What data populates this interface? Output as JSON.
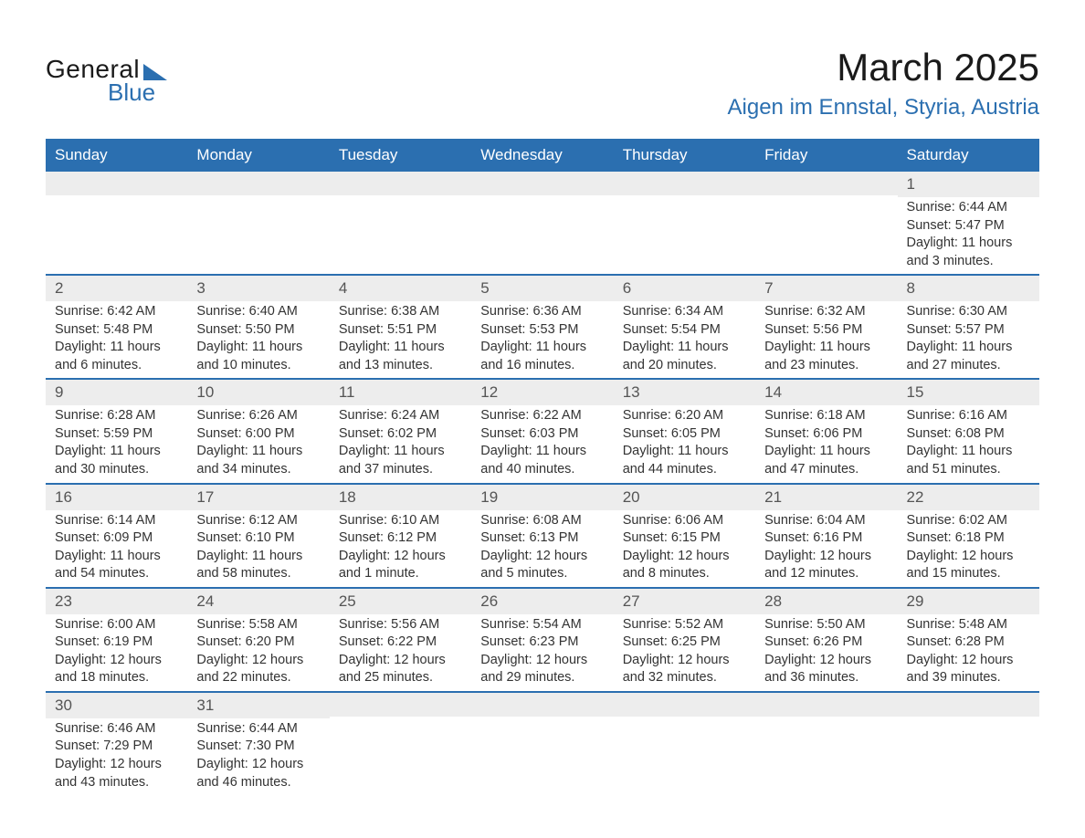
{
  "logo": {
    "text_main": "General",
    "text_sub": "Blue",
    "accent_color": "#2b6fb0"
  },
  "title": {
    "month": "March 2025",
    "location": "Aigen im Ennstal, Styria, Austria"
  },
  "styling": {
    "header_bg": "#2b6fb0",
    "header_fg": "#ffffff",
    "strip_bg": "#ededed",
    "row_divider": "#2b6fb0",
    "body_fontsize": 14.5,
    "header_fontsize": 17,
    "title_fontsize": 42,
    "subtitle_fontsize": 24
  },
  "day_headers": [
    "Sunday",
    "Monday",
    "Tuesday",
    "Wednesday",
    "Thursday",
    "Friday",
    "Saturday"
  ],
  "weeks": [
    [
      {
        "n": "",
        "sunrise": "",
        "sunset": "",
        "daylight": ""
      },
      {
        "n": "",
        "sunrise": "",
        "sunset": "",
        "daylight": ""
      },
      {
        "n": "",
        "sunrise": "",
        "sunset": "",
        "daylight": ""
      },
      {
        "n": "",
        "sunrise": "",
        "sunset": "",
        "daylight": ""
      },
      {
        "n": "",
        "sunrise": "",
        "sunset": "",
        "daylight": ""
      },
      {
        "n": "",
        "sunrise": "",
        "sunset": "",
        "daylight": ""
      },
      {
        "n": "1",
        "sunrise": "Sunrise: 6:44 AM",
        "sunset": "Sunset: 5:47 PM",
        "daylight": "Daylight: 11 hours and 3 minutes."
      }
    ],
    [
      {
        "n": "2",
        "sunrise": "Sunrise: 6:42 AM",
        "sunset": "Sunset: 5:48 PM",
        "daylight": "Daylight: 11 hours and 6 minutes."
      },
      {
        "n": "3",
        "sunrise": "Sunrise: 6:40 AM",
        "sunset": "Sunset: 5:50 PM",
        "daylight": "Daylight: 11 hours and 10 minutes."
      },
      {
        "n": "4",
        "sunrise": "Sunrise: 6:38 AM",
        "sunset": "Sunset: 5:51 PM",
        "daylight": "Daylight: 11 hours and 13 minutes."
      },
      {
        "n": "5",
        "sunrise": "Sunrise: 6:36 AM",
        "sunset": "Sunset: 5:53 PM",
        "daylight": "Daylight: 11 hours and 16 minutes."
      },
      {
        "n": "6",
        "sunrise": "Sunrise: 6:34 AM",
        "sunset": "Sunset: 5:54 PM",
        "daylight": "Daylight: 11 hours and 20 minutes."
      },
      {
        "n": "7",
        "sunrise": "Sunrise: 6:32 AM",
        "sunset": "Sunset: 5:56 PM",
        "daylight": "Daylight: 11 hours and 23 minutes."
      },
      {
        "n": "8",
        "sunrise": "Sunrise: 6:30 AM",
        "sunset": "Sunset: 5:57 PM",
        "daylight": "Daylight: 11 hours and 27 minutes."
      }
    ],
    [
      {
        "n": "9",
        "sunrise": "Sunrise: 6:28 AM",
        "sunset": "Sunset: 5:59 PM",
        "daylight": "Daylight: 11 hours and 30 minutes."
      },
      {
        "n": "10",
        "sunrise": "Sunrise: 6:26 AM",
        "sunset": "Sunset: 6:00 PM",
        "daylight": "Daylight: 11 hours and 34 minutes."
      },
      {
        "n": "11",
        "sunrise": "Sunrise: 6:24 AM",
        "sunset": "Sunset: 6:02 PM",
        "daylight": "Daylight: 11 hours and 37 minutes."
      },
      {
        "n": "12",
        "sunrise": "Sunrise: 6:22 AM",
        "sunset": "Sunset: 6:03 PM",
        "daylight": "Daylight: 11 hours and 40 minutes."
      },
      {
        "n": "13",
        "sunrise": "Sunrise: 6:20 AM",
        "sunset": "Sunset: 6:05 PM",
        "daylight": "Daylight: 11 hours and 44 minutes."
      },
      {
        "n": "14",
        "sunrise": "Sunrise: 6:18 AM",
        "sunset": "Sunset: 6:06 PM",
        "daylight": "Daylight: 11 hours and 47 minutes."
      },
      {
        "n": "15",
        "sunrise": "Sunrise: 6:16 AM",
        "sunset": "Sunset: 6:08 PM",
        "daylight": "Daylight: 11 hours and 51 minutes."
      }
    ],
    [
      {
        "n": "16",
        "sunrise": "Sunrise: 6:14 AM",
        "sunset": "Sunset: 6:09 PM",
        "daylight": "Daylight: 11 hours and 54 minutes."
      },
      {
        "n": "17",
        "sunrise": "Sunrise: 6:12 AM",
        "sunset": "Sunset: 6:10 PM",
        "daylight": "Daylight: 11 hours and 58 minutes."
      },
      {
        "n": "18",
        "sunrise": "Sunrise: 6:10 AM",
        "sunset": "Sunset: 6:12 PM",
        "daylight": "Daylight: 12 hours and 1 minute."
      },
      {
        "n": "19",
        "sunrise": "Sunrise: 6:08 AM",
        "sunset": "Sunset: 6:13 PM",
        "daylight": "Daylight: 12 hours and 5 minutes."
      },
      {
        "n": "20",
        "sunrise": "Sunrise: 6:06 AM",
        "sunset": "Sunset: 6:15 PM",
        "daylight": "Daylight: 12 hours and 8 minutes."
      },
      {
        "n": "21",
        "sunrise": "Sunrise: 6:04 AM",
        "sunset": "Sunset: 6:16 PM",
        "daylight": "Daylight: 12 hours and 12 minutes."
      },
      {
        "n": "22",
        "sunrise": "Sunrise: 6:02 AM",
        "sunset": "Sunset: 6:18 PM",
        "daylight": "Daylight: 12 hours and 15 minutes."
      }
    ],
    [
      {
        "n": "23",
        "sunrise": "Sunrise: 6:00 AM",
        "sunset": "Sunset: 6:19 PM",
        "daylight": "Daylight: 12 hours and 18 minutes."
      },
      {
        "n": "24",
        "sunrise": "Sunrise: 5:58 AM",
        "sunset": "Sunset: 6:20 PM",
        "daylight": "Daylight: 12 hours and 22 minutes."
      },
      {
        "n": "25",
        "sunrise": "Sunrise: 5:56 AM",
        "sunset": "Sunset: 6:22 PM",
        "daylight": "Daylight: 12 hours and 25 minutes."
      },
      {
        "n": "26",
        "sunrise": "Sunrise: 5:54 AM",
        "sunset": "Sunset: 6:23 PM",
        "daylight": "Daylight: 12 hours and 29 minutes."
      },
      {
        "n": "27",
        "sunrise": "Sunrise: 5:52 AM",
        "sunset": "Sunset: 6:25 PM",
        "daylight": "Daylight: 12 hours and 32 minutes."
      },
      {
        "n": "28",
        "sunrise": "Sunrise: 5:50 AM",
        "sunset": "Sunset: 6:26 PM",
        "daylight": "Daylight: 12 hours and 36 minutes."
      },
      {
        "n": "29",
        "sunrise": "Sunrise: 5:48 AM",
        "sunset": "Sunset: 6:28 PM",
        "daylight": "Daylight: 12 hours and 39 minutes."
      }
    ],
    [
      {
        "n": "30",
        "sunrise": "Sunrise: 6:46 AM",
        "sunset": "Sunset: 7:29 PM",
        "daylight": "Daylight: 12 hours and 43 minutes."
      },
      {
        "n": "31",
        "sunrise": "Sunrise: 6:44 AM",
        "sunset": "Sunset: 7:30 PM",
        "daylight": "Daylight: 12 hours and 46 minutes."
      },
      {
        "n": "",
        "sunrise": "",
        "sunset": "",
        "daylight": ""
      },
      {
        "n": "",
        "sunrise": "",
        "sunset": "",
        "daylight": ""
      },
      {
        "n": "",
        "sunrise": "",
        "sunset": "",
        "daylight": ""
      },
      {
        "n": "",
        "sunrise": "",
        "sunset": "",
        "daylight": ""
      },
      {
        "n": "",
        "sunrise": "",
        "sunset": "",
        "daylight": ""
      }
    ]
  ]
}
